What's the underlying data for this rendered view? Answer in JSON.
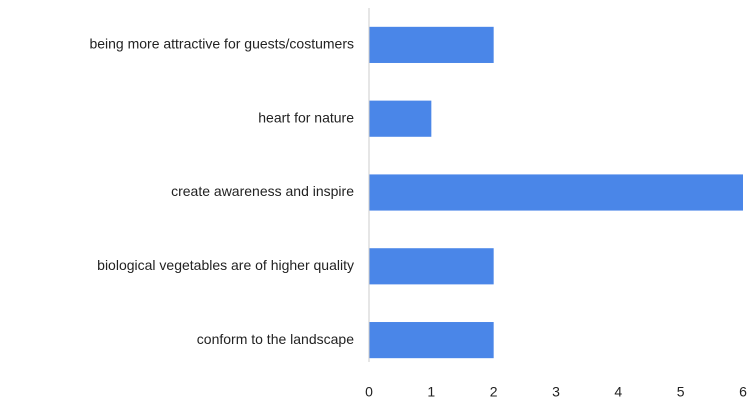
{
  "chart_data": {
    "type": "bar",
    "orientation": "horizontal",
    "categories": [
      "being more attractive for guests/costumers",
      "heart for nature",
      "create awareness and inspire",
      "biological vegetables are of higher quality",
      "conform to the landscape"
    ],
    "values": [
      2,
      1,
      6,
      2,
      2
    ],
    "color": "#4a86e8",
    "xlim": [
      0,
      6
    ],
    "xticks": [
      0,
      1,
      2,
      3,
      4,
      5,
      6
    ],
    "grid": false
  }
}
